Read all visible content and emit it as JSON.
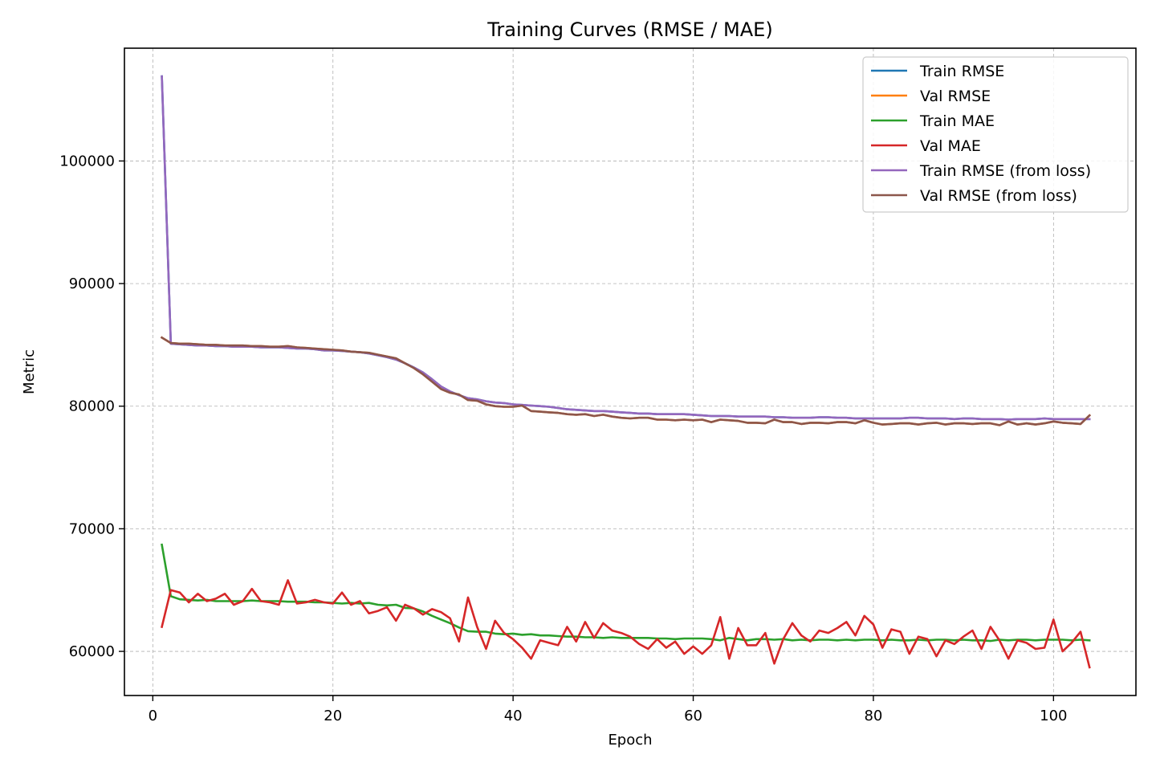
{
  "chart_data": {
    "type": "line",
    "title": "Training Curves (RMSE / MAE)",
    "xlabel": "Epoch",
    "ylabel": "Metric",
    "xlim": [
      -3.15,
      109.15
    ],
    "ylim": [
      56400,
      109200
    ],
    "xticks": [
      0,
      20,
      40,
      60,
      80,
      100
    ],
    "yticks": [
      60000,
      70000,
      80000,
      90000,
      100000
    ],
    "grid": true,
    "legend_position": "top-right",
    "x_start": 1,
    "series": [
      {
        "name": "Train RMSE",
        "color": "#1f77b4",
        "values": [
          106900,
          85100,
          85050,
          85000,
          84950,
          84950,
          84900,
          84900,
          84850,
          84850,
          84850,
          84800,
          84800,
          84800,
          84750,
          84700,
          84700,
          84650,
          84550,
          84550,
          84500,
          84450,
          84400,
          84300,
          84150,
          84000,
          83800,
          83500,
          83150,
          82750,
          82200,
          81600,
          81200,
          80900,
          80650,
          80550,
          80400,
          80300,
          80250,
          80150,
          80100,
          80050,
          80000,
          79950,
          79850,
          79750,
          79700,
          79650,
          79600,
          79600,
          79550,
          79500,
          79450,
          79400,
          79400,
          79350,
          79350,
          79350,
          79350,
          79300,
          79250,
          79200,
          79200,
          79200,
          79150,
          79150,
          79150,
          79150,
          79100,
          79100,
          79050,
          79050,
          79050,
          79100,
          79100,
          79050,
          79050,
          79000,
          79000,
          79000,
          79000,
          79000,
          79000,
          79050,
          79050,
          79000,
          79000,
          79000,
          78950,
          79000,
          79000,
          78950,
          78950,
          78950,
          78900,
          78950,
          78950,
          78950,
          79000,
          78950,
          78950,
          78950,
          78950,
          78950
        ]
      },
      {
        "name": "Val RMSE",
        "color": "#ff7f0e",
        "values": [
          85600,
          85150,
          85100,
          85100,
          85050,
          85000,
          85000,
          84950,
          84950,
          84950,
          84900,
          84900,
          84850,
          84850,
          84900,
          84800,
          84750,
          84700,
          84650,
          84600,
          84550,
          84450,
          84400,
          84350,
          84200,
          84050,
          83900,
          83500,
          83100,
          82600,
          82000,
          81400,
          81100,
          80950,
          80500,
          80450,
          80150,
          80000,
          79950,
          79950,
          80050,
          79600,
          79550,
          79500,
          79450,
          79350,
          79300,
          79350,
          79200,
          79300,
          79150,
          79050,
          79000,
          79050,
          79050,
          78900,
          78900,
          78850,
          78900,
          78850,
          78900,
          78700,
          78900,
          78850,
          78800,
          78650,
          78650,
          78600,
          78900,
          78700,
          78700,
          78550,
          78650,
          78650,
          78600,
          78700,
          78700,
          78600,
          78850,
          78650,
          78500,
          78550,
          78600,
          78600,
          78500,
          78600,
          78650,
          78500,
          78600,
          78600,
          78550,
          78600,
          78600,
          78450,
          78750,
          78500,
          78600,
          78500,
          78600,
          78750,
          78650,
          78600,
          78550,
          79250
        ]
      },
      {
        "name": "Train MAE",
        "color": "#2ca02c",
        "values": [
          68700,
          64500,
          64250,
          64200,
          64150,
          64200,
          64100,
          64100,
          64100,
          64100,
          64150,
          64100,
          64100,
          64100,
          64050,
          64050,
          64050,
          64000,
          64000,
          63950,
          63900,
          63950,
          63900,
          63950,
          63800,
          63750,
          63800,
          63550,
          63500,
          63250,
          62900,
          62600,
          62300,
          61950,
          61650,
          61600,
          61600,
          61450,
          61400,
          61450,
          61350,
          61400,
          61300,
          61300,
          61250,
          61200,
          61200,
          61150,
          61150,
          61100,
          61150,
          61100,
          61100,
          61100,
          61100,
          61050,
          61050,
          61000,
          61050,
          61050,
          61050,
          61000,
          60900,
          61100,
          61000,
          60900,
          61000,
          61000,
          60950,
          61000,
          60900,
          60950,
          60900,
          60950,
          60950,
          60900,
          60950,
          60900,
          60950,
          60950,
          60900,
          60950,
          60900,
          60900,
          60950,
          60900,
          60950,
          60950,
          60900,
          60950,
          60900,
          60900,
          60850,
          60950,
          60900,
          60950,
          60950,
          60900,
          60950,
          60950,
          60950,
          60900,
          60950,
          60900
        ]
      },
      {
        "name": "Val MAE",
        "color": "#d62728",
        "values": [
          62000,
          65000,
          64800,
          64000,
          64700,
          64100,
          64300,
          64700,
          63800,
          64100,
          65100,
          64100,
          64000,
          63800,
          65800,
          63900,
          64000,
          64200,
          64000,
          63900,
          64800,
          63800,
          64100,
          63100,
          63300,
          63600,
          62500,
          63800,
          63500,
          63000,
          63450,
          63200,
          62700,
          60800,
          64400,
          62000,
          60200,
          62500,
          61500,
          61000,
          60300,
          59400,
          60900,
          60700,
          60500,
          62000,
          60800,
          62400,
          61100,
          62300,
          61700,
          61500,
          61200,
          60600,
          60200,
          61000,
          60300,
          60800,
          59800,
          60400,
          59800,
          60500,
          62800,
          59400,
          61900,
          60500,
          60500,
          61500,
          59000,
          61000,
          62300,
          61300,
          60800,
          61700,
          61500,
          61900,
          62400,
          61300,
          62900,
          62200,
          60300,
          61800,
          61600,
          59800,
          61200,
          61000,
          59600,
          60900,
          60600,
          61200,
          61700,
          60200,
          62000,
          60900,
          59400,
          60900,
          60700,
          60200,
          60300,
          62600,
          60000,
          60700,
          61600,
          58700
        ]
      },
      {
        "name": "Train RMSE (from loss)",
        "color": "#9467bd",
        "values": [
          106900,
          85100,
          85050,
          85000,
          84950,
          84950,
          84900,
          84900,
          84850,
          84850,
          84850,
          84800,
          84800,
          84800,
          84750,
          84700,
          84700,
          84650,
          84550,
          84550,
          84500,
          84450,
          84400,
          84300,
          84150,
          84000,
          83800,
          83500,
          83150,
          82750,
          82200,
          81600,
          81200,
          80900,
          80650,
          80550,
          80400,
          80300,
          80250,
          80150,
          80100,
          80050,
          80000,
          79950,
          79850,
          79750,
          79700,
          79650,
          79600,
          79600,
          79550,
          79500,
          79450,
          79400,
          79400,
          79350,
          79350,
          79350,
          79350,
          79300,
          79250,
          79200,
          79200,
          79200,
          79150,
          79150,
          79150,
          79150,
          79100,
          79100,
          79050,
          79050,
          79050,
          79100,
          79100,
          79050,
          79050,
          79000,
          79000,
          79000,
          79000,
          79000,
          79000,
          79050,
          79050,
          79000,
          79000,
          79000,
          78950,
          79000,
          79000,
          78950,
          78950,
          78950,
          78900,
          78950,
          78950,
          78950,
          79000,
          78950,
          78950,
          78950,
          78950,
          78950
        ]
      },
      {
        "name": "Val RMSE (from loss)",
        "color": "#8c564b",
        "values": [
          85600,
          85150,
          85100,
          85100,
          85050,
          85000,
          85000,
          84950,
          84950,
          84950,
          84900,
          84900,
          84850,
          84850,
          84900,
          84800,
          84750,
          84700,
          84650,
          84600,
          84550,
          84450,
          84400,
          84350,
          84200,
          84050,
          83900,
          83500,
          83100,
          82600,
          82000,
          81400,
          81100,
          80950,
          80500,
          80450,
          80150,
          80000,
          79950,
          79950,
          80050,
          79600,
          79550,
          79500,
          79450,
          79350,
          79300,
          79350,
          79200,
          79300,
          79150,
          79050,
          79000,
          79050,
          79050,
          78900,
          78900,
          78850,
          78900,
          78850,
          78900,
          78700,
          78900,
          78850,
          78800,
          78650,
          78650,
          78600,
          78900,
          78700,
          78700,
          78550,
          78650,
          78650,
          78600,
          78700,
          78700,
          78600,
          78850,
          78650,
          78500,
          78550,
          78600,
          78600,
          78500,
          78600,
          78650,
          78500,
          78600,
          78600,
          78550,
          78600,
          78600,
          78450,
          78750,
          78500,
          78600,
          78500,
          78600,
          78750,
          78650,
          78600,
          78550,
          79250
        ]
      }
    ]
  }
}
